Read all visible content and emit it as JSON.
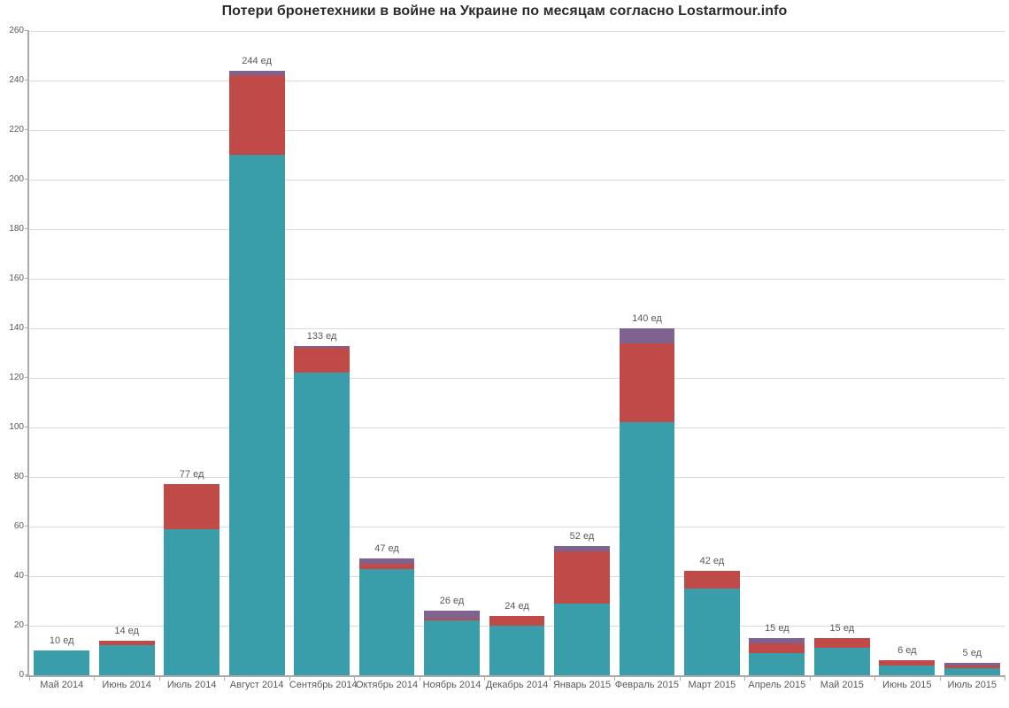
{
  "title": "Потери бронетехники в войне на Украине по месяцам согласно Lostarmour.info",
  "unit_suffix": "ед",
  "colors": {
    "teal": "#399EAA",
    "red": "#C04A47",
    "purple": "#7E6290",
    "gridline": "#D9D9D9",
    "axis": "#ABABAB",
    "label_text": "#595959",
    "title_text": "#2B2B2B"
  },
  "chart_data": {
    "type": "bar",
    "stacked": true,
    "title": "Потери бронетехники в войне на Украине по месяцам согласно Lostarmour.info",
    "xlabel": "",
    "ylabel": "",
    "ylim": [
      0,
      260
    ],
    "ytick_step": 20,
    "ytick_labels": [
      "0",
      "20",
      "40",
      "60",
      "80",
      "100",
      "120",
      "140",
      "160",
      "180",
      "200",
      "220",
      "240",
      "260"
    ],
    "grid": true,
    "legend": "none",
    "categories": [
      "Май 2014",
      "Июнь 2014",
      "Июль 2014",
      "Август 2014",
      "Сентябрь 2014",
      "Октябрь 2014",
      "Ноябрь 2014",
      "Декабрь 2014",
      "Январь 2015",
      "Февраль 2015",
      "Март 2015",
      "Апрель 2015",
      "Май 2015",
      "Июнь 2015",
      "Июль 2015"
    ],
    "series": [
      {
        "name": "series-teal",
        "color": "#399EAA",
        "values": [
          10,
          12,
          59,
          210,
          122,
          43,
          22,
          20,
          29,
          102,
          35,
          9,
          11,
          4,
          3
        ]
      },
      {
        "name": "series-red",
        "color": "#C04A47",
        "values": [
          0,
          2,
          18,
          32,
          10,
          2,
          1,
          4,
          21,
          32,
          7,
          4,
          4,
          2,
          1
        ]
      },
      {
        "name": "series-purple",
        "color": "#7E6290",
        "values": [
          0,
          0,
          0,
          2,
          1,
          2,
          3,
          0,
          2,
          6,
          0,
          2,
          0,
          0,
          1
        ]
      }
    ],
    "totals": [
      10,
      14,
      77,
      244,
      133,
      47,
      26,
      24,
      52,
      140,
      42,
      15,
      15,
      6,
      5
    ],
    "bar_labels": [
      "10 ед",
      "14 ед",
      "77 ед",
      "244 ед",
      "133 ед",
      "47 ед",
      "26 ед",
      "24 ед",
      "52 ед",
      "140 ед",
      "42 ед",
      "15 ед",
      "15 ед",
      "6 ед",
      "5 ед"
    ]
  }
}
